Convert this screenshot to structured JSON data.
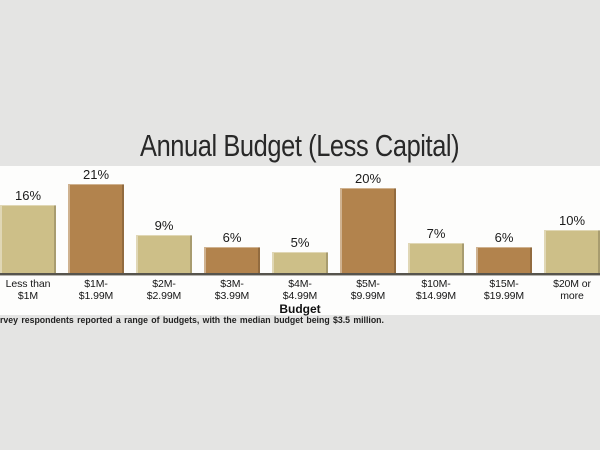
{
  "title": "Annual Budget (Less Capital)",
  "caption": "rvey respondents reported a range of budgets, with the median budget being $3.5 million.",
  "chart_data": {
    "type": "bar",
    "title": "Annual Budget (Less Capital)",
    "xlabel": "Budget",
    "ylabel": "",
    "categories": [
      "Less than\n$1M",
      "$1M-\n$1.99M",
      "$2M-\n$2.99M",
      "$3M-\n$3.99M",
      "$4M-\n$4.99M",
      "$5M-\n$9.99M",
      "$10M-\n$14.99M",
      "$15M-\n$19.99M",
      "$20M or\nmore"
    ],
    "values": [
      16,
      21,
      9,
      6,
      5,
      20,
      7,
      6,
      10
    ],
    "value_labels": [
      "16%",
      "21%",
      "9%",
      "6%",
      "5%",
      "20%",
      "7%",
      "6%",
      "10%"
    ],
    "ylim": [
      0,
      25
    ],
    "grid": false,
    "legend": "none",
    "colors": {
      "tan": "#cdbf88",
      "brown": "#b2834d",
      "axis": "#56544d",
      "panel_background": "#fdfdfc",
      "page_background": "#e4e4e3"
    },
    "annotation": "rvey respondents reported a range of budgets, with the median budget being $3.5 million."
  }
}
